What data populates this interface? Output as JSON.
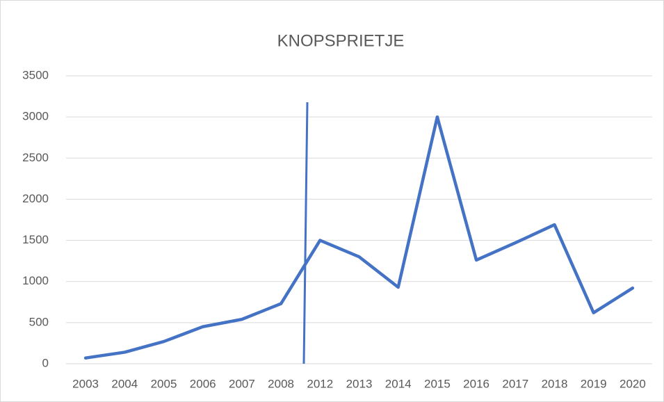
{
  "chart_data": {
    "type": "line",
    "title": "KNOPSPRIETJE",
    "categories": [
      "2003",
      "2004",
      "2005",
      "2006",
      "2007",
      "2008",
      "2012",
      "2013",
      "2014",
      "2015",
      "2016",
      "2017",
      "2018",
      "2019",
      "2020"
    ],
    "values": [
      70,
      140,
      270,
      450,
      540,
      730,
      1500,
      1300,
      930,
      3000,
      1260,
      1470,
      1690,
      620,
      920
    ],
    "color": "#4472c4",
    "ylim": [
      0,
      3500
    ],
    "yticks": [
      0,
      500,
      1000,
      1500,
      2000,
      2500,
      3000,
      3500
    ],
    "grid": true
  }
}
